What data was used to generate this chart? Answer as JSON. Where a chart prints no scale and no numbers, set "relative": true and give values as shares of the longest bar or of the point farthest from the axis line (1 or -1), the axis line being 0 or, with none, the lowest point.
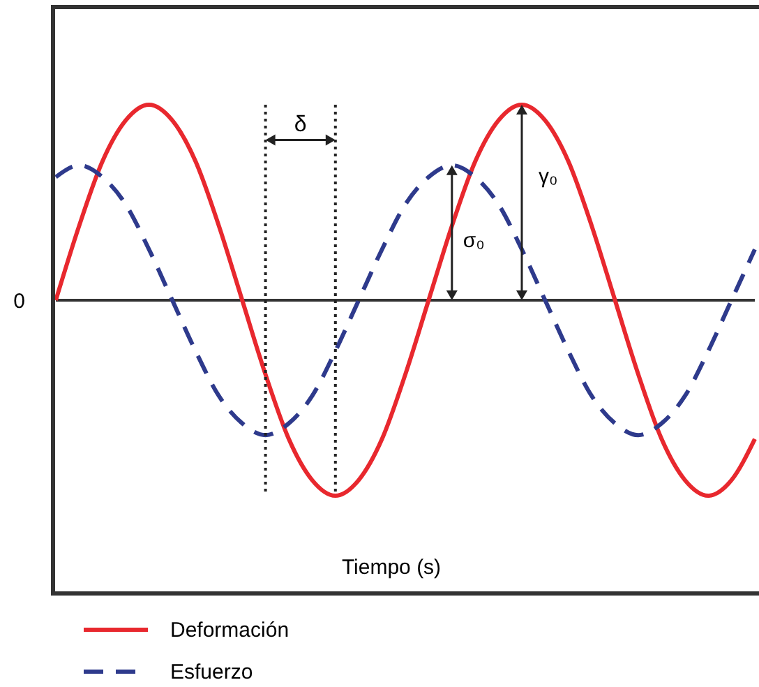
{
  "chart_data": {
    "type": "line",
    "relative": true,
    "xlabel": "Tiempo (s)",
    "categories": [
      null,
      null,
      null,
      null,
      null,
      null,
      null,
      null,
      null,
      null,
      null,
      null,
      null,
      null,
      null,
      null,
      null,
      null,
      null,
      null,
      null,
      null,
      null,
      null,
      null,
      null,
      null,
      null,
      null,
      null,
      null
    ],
    "series": [
      {
        "name": "Deformación",
        "color": "#e8282e",
        "line_style": "solid",
        "values": [
          0,
          0.38,
          0.71,
          0.92,
          1,
          0.92,
          0.71,
          0.38,
          0,
          -0.38,
          -0.71,
          -0.92,
          -1,
          -0.92,
          -0.71,
          -0.38,
          0,
          0.38,
          0.71,
          0.92,
          1,
          0.92,
          0.71,
          0.38,
          0,
          -0.38,
          -0.71,
          -0.92,
          -1,
          -0.92,
          -0.71
        ]
      },
      {
        "name": "Esfuerzo",
        "color": "#2e3a8c",
        "line_style": "dashed",
        "values": [
          0.63,
          0.69,
          0.63,
          0.49,
          0.26,
          0,
          -0.26,
          -0.49,
          -0.63,
          -0.69,
          -0.63,
          -0.49,
          -0.26,
          0,
          0.26,
          0.49,
          0.63,
          0.69,
          0.63,
          0.49,
          0.26,
          0,
          -0.26,
          -0.49,
          -0.63,
          -0.69,
          -0.63,
          -0.49,
          -0.26,
          0,
          0.26
        ]
      }
    ],
    "marker": "none",
    "legend": "bottom left",
    "grid": false,
    "ref_lines": [
      {
        "axis": "y",
        "value": 0,
        "label": "0",
        "color": "#333333"
      }
    ],
    "annotations": [
      "δ",
      "σ₀",
      "γ₀"
    ]
  }
}
